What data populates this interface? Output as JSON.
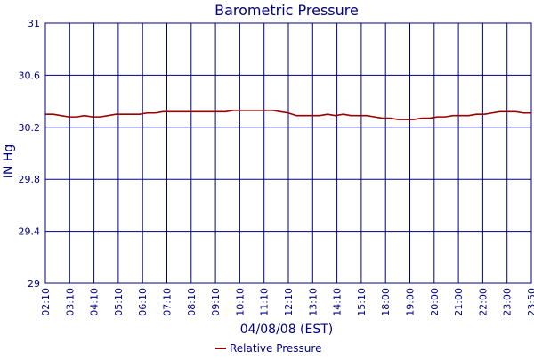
{
  "chart_data": {
    "type": "line",
    "title": "Barometric Pressure",
    "xlabel": "04/08/08 (EST)",
    "ylabel": "IN Hg",
    "ylim": [
      29,
      31
    ],
    "y_ticks": [
      "29",
      "29.4",
      "29.8",
      "30.2",
      "30.6",
      "31"
    ],
    "x_ticks": [
      "02:10",
      "03:10",
      "04:10",
      "05:10",
      "06:10",
      "07:10",
      "08:10",
      "09:10",
      "10:10",
      "11:10",
      "12:10",
      "13:10",
      "14:10",
      "15:10",
      "18:00",
      "19:00",
      "20:00",
      "21:00",
      "22:00",
      "23:00",
      "23:50"
    ],
    "grid": true,
    "legend": "bottom-center",
    "colors": {
      "frame": "#000080",
      "gridline": "#000080",
      "series": "#990000",
      "text": "#000080"
    },
    "series": [
      {
        "name": "Relative Pressure",
        "values": [
          30.3,
          30.3,
          30.29,
          30.28,
          30.28,
          30.29,
          30.28,
          30.28,
          30.29,
          30.3,
          30.3,
          30.3,
          30.3,
          30.31,
          30.31,
          30.32,
          30.32,
          30.32,
          30.32,
          30.32,
          30.32,
          30.32,
          30.32,
          30.32,
          30.33,
          30.33,
          30.33,
          30.33,
          30.33,
          30.33,
          30.32,
          30.31,
          30.29,
          30.29,
          30.29,
          30.29,
          30.3,
          30.29,
          30.3,
          30.29,
          30.29,
          30.29,
          30.28,
          30.27,
          30.27,
          30.26,
          30.26,
          30.26,
          30.27,
          30.27,
          30.28,
          30.28,
          30.29,
          30.29,
          30.29,
          30.3,
          30.3,
          30.31,
          30.32,
          30.32,
          30.32,
          30.31,
          30.31
        ]
      }
    ]
  }
}
